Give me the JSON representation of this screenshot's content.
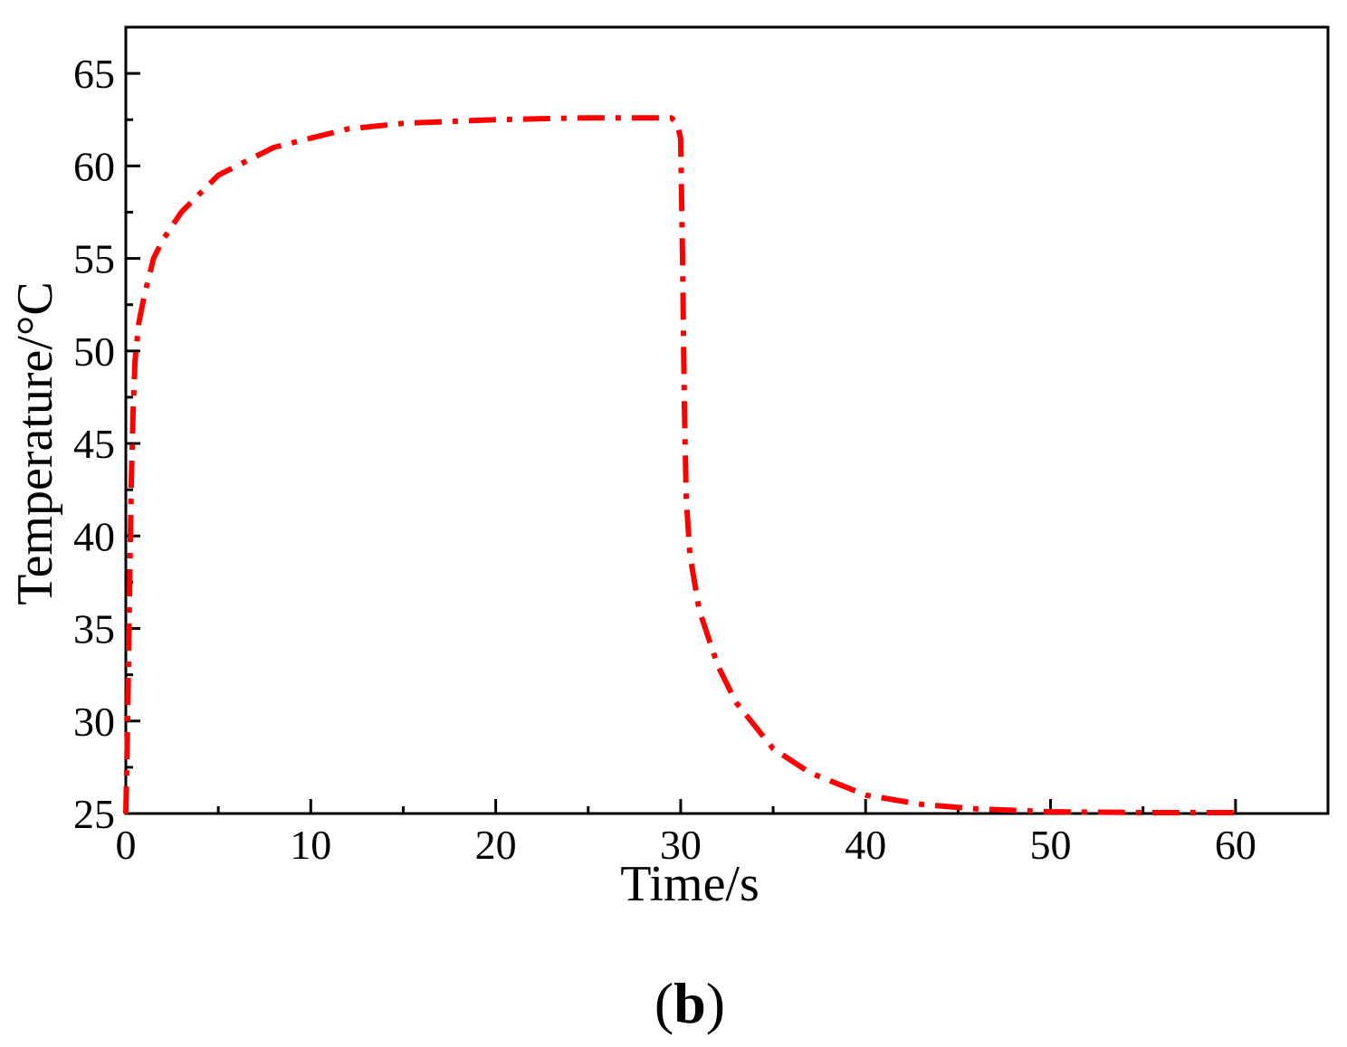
{
  "panel_label": {
    "open": "(",
    "letter": "b",
    "close": ")"
  },
  "chart_data": {
    "type": "line",
    "title": "",
    "xlabel": "Time/s",
    "ylabel": "Temperature/°C",
    "xlim": [
      0,
      65
    ],
    "ylim": [
      25,
      67.5
    ],
    "x_ticks": [
      0,
      10,
      20,
      30,
      40,
      50,
      60
    ],
    "y_ticks": [
      25,
      30,
      35,
      40,
      45,
      50,
      55,
      60,
      65
    ],
    "x_minor_ticks": [
      5,
      15,
      25,
      35,
      45,
      55
    ],
    "y_minor_ticks": [
      27.5,
      32.5,
      37.5,
      42.5,
      47.5,
      52.5,
      57.5,
      62.5
    ],
    "grid": false,
    "legend": "none",
    "series": [
      {
        "color": "#ff0000",
        "line_style": "dash-dot",
        "x": [
          0,
          0.1,
          0.2,
          0.3,
          0.4,
          0.5,
          0.7,
          1,
          1.5,
          2,
          3,
          4,
          5,
          6,
          8,
          10,
          12,
          15,
          20,
          25,
          29.5,
          29.8,
          30,
          30.1,
          30.2,
          30.3,
          30.5,
          31,
          32,
          33,
          35,
          37,
          40,
          43,
          46,
          50,
          55,
          60
        ],
        "y": [
          25,
          30,
          37,
          43,
          47,
          49.5,
          51.5,
          53,
          55,
          56,
          57.5,
          58.5,
          59.5,
          60,
          61,
          61.5,
          62,
          62.3,
          62.5,
          62.6,
          62.6,
          62.3,
          61.5,
          55,
          47,
          42,
          39,
          36,
          33,
          31,
          28.5,
          27.2,
          26,
          25.5,
          25.25,
          25.1,
          25.05,
          25.05
        ]
      }
    ]
  },
  "colors": {
    "series": "#ff0000",
    "axes": "#000000",
    "background": "#ffffff"
  }
}
